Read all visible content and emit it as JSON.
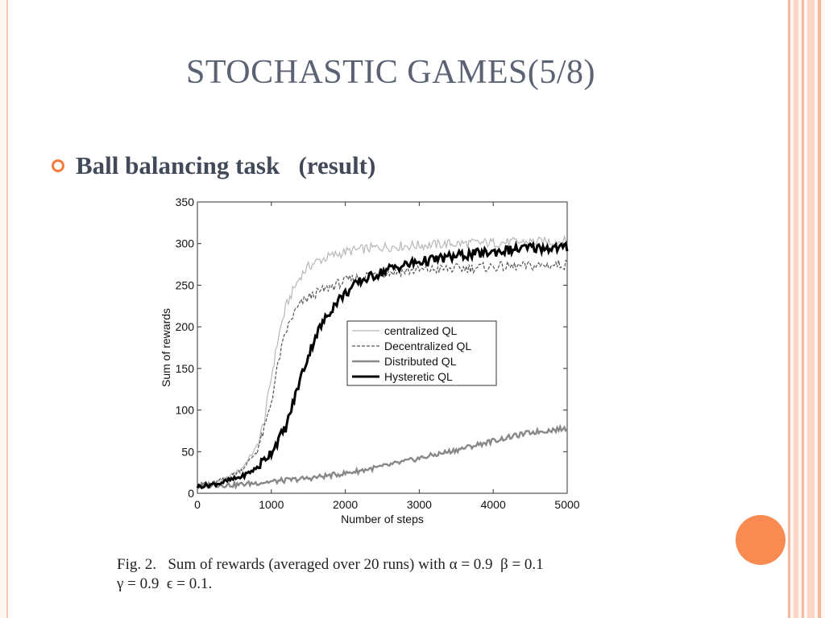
{
  "slide": {
    "title": "STOCHASTIC GAMES(5/8)",
    "bullet": "Ball balancing task   (result)"
  },
  "caption": {
    "line1": "Fig. 2.   Sum of rewards (averaged over 20 runs) with α = 0.9  β = 0.1",
    "line2": "γ = 0.9  ϵ = 0.1."
  },
  "colors": {
    "accent": "#f47c3c",
    "title": "#5a6273",
    "stripe_light": "#fbd6c6",
    "stripe_mid": "#f8b89c"
  },
  "chart_data": {
    "type": "line",
    "title": "",
    "xlabel": "Number of steps",
    "ylabel": "Sum of rewards",
    "xlim": [
      0,
      5000
    ],
    "ylim": [
      0,
      350
    ],
    "xticks": [
      0,
      1000,
      2000,
      3000,
      4000,
      5000
    ],
    "yticks": [
      0,
      50,
      100,
      150,
      200,
      250,
      300,
      350
    ],
    "grid": false,
    "legend_position": "center-right",
    "series": [
      {
        "name": "centralized QL",
        "style": "thin-light-gray",
        "x": [
          0,
          200,
          400,
          600,
          800,
          900,
          1000,
          1100,
          1200,
          1300,
          1400,
          1500,
          1600,
          1800,
          2000,
          2200,
          2500,
          3000,
          3500,
          4000,
          4500,
          5000
        ],
        "y": [
          8,
          12,
          18,
          30,
          55,
          85,
          140,
          190,
          225,
          245,
          262,
          272,
          278,
          285,
          290,
          293,
          296,
          298,
          300,
          301,
          302,
          303
        ]
      },
      {
        "name": "Decentralized QL",
        "style": "dashed-dark",
        "x": [
          0,
          200,
          400,
          600,
          800,
          900,
          1000,
          1100,
          1200,
          1300,
          1400,
          1500,
          1600,
          1800,
          2000,
          2200,
          2500,
          3000,
          3500,
          4000,
          4500,
          5000
        ],
        "y": [
          8,
          12,
          18,
          28,
          50,
          75,
          110,
          160,
          195,
          215,
          228,
          235,
          240,
          248,
          255,
          260,
          265,
          268,
          270,
          272,
          273,
          275
        ]
      },
      {
        "name": "Distributed QL",
        "style": "medium-gray",
        "x": [
          0,
          500,
          1000,
          1500,
          2000,
          2500,
          3000,
          3500,
          4000,
          4500,
          5000
        ],
        "y": [
          10,
          10,
          14,
          18,
          24,
          32,
          42,
          52,
          63,
          73,
          78
        ]
      },
      {
        "name": "Hysteretic QL",
        "style": "thick-black",
        "x": [
          0,
          300,
          600,
          800,
          1000,
          1100,
          1200,
          1300,
          1400,
          1500,
          1600,
          1700,
          1800,
          1900,
          2000,
          2200,
          2400,
          2600,
          3000,
          3500,
          4000,
          4500,
          5000
        ],
        "y": [
          8,
          12,
          20,
          30,
          50,
          65,
          80,
          110,
          140,
          165,
          190,
          205,
          220,
          232,
          240,
          255,
          262,
          270,
          278,
          285,
          290,
          295,
          295
        ]
      }
    ]
  }
}
